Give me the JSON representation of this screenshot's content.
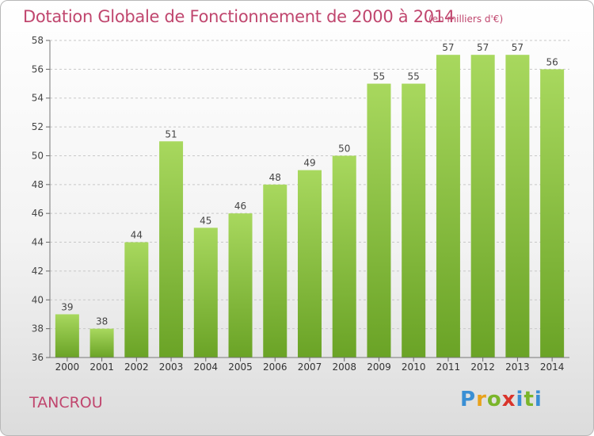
{
  "title": "Dotation Globale de Fonctionnement de 2000 à 2014",
  "unit_note": "(en milliers d'€)",
  "commune": "TANCROU",
  "logo_text": "Proxiti",
  "colors": {
    "title": "#c0466e",
    "bar_light": "#a4d65a",
    "bar_dark": "#6ea62a"
  },
  "chart_data": {
    "type": "bar",
    "title": "Dotation Globale de Fonctionnement de 2000 à 2014",
    "subtitle": "(en milliers d'€)",
    "xlabel": "",
    "ylabel": "",
    "ylim": [
      36,
      58
    ],
    "yticks": [
      36,
      38,
      40,
      42,
      44,
      46,
      48,
      50,
      52,
      54,
      56,
      58
    ],
    "grid": true,
    "categories": [
      "2000",
      "2001",
      "2002",
      "2003",
      "2004",
      "2005",
      "2006",
      "2007",
      "2008",
      "2009",
      "2010",
      "2011",
      "2012",
      "2013",
      "2014"
    ],
    "values": [
      39,
      38,
      44,
      51,
      45,
      46,
      48,
      49,
      50,
      55,
      55,
      57,
      57,
      57,
      56
    ]
  }
}
